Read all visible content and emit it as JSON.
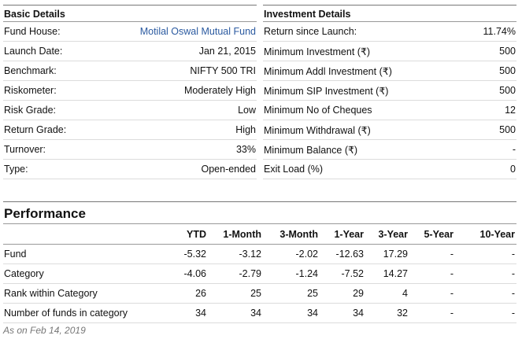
{
  "basic": {
    "title": "Basic Details",
    "rows": [
      {
        "label": "Fund House:",
        "value": "Motilal Oswal Mutual Fund"
      },
      {
        "label": "Launch Date:",
        "value": "Jan 21, 2015"
      },
      {
        "label": "Benchmark:",
        "value": "NIFTY 500 TRI"
      },
      {
        "label": "Riskometer:",
        "value": "Moderately High"
      },
      {
        "label": "Risk Grade:",
        "value": "Low"
      },
      {
        "label": "Return Grade:",
        "value": "High"
      },
      {
        "label": "Turnover:",
        "value": "33%"
      },
      {
        "label": "Type:",
        "value": "Open-ended"
      }
    ]
  },
  "investment": {
    "title": "Investment Details",
    "rows": [
      {
        "label": "Return since Launch:",
        "value": "11.74%"
      },
      {
        "label": "Minimum Investment (₹)",
        "value": "500"
      },
      {
        "label": "Minimum Addl Investment (₹)",
        "value": "500"
      },
      {
        "label": "Minimum SIP Investment (₹)",
        "value": "500"
      },
      {
        "label": "Minimum No of Cheques",
        "value": "12"
      },
      {
        "label": "Minimum Withdrawal (₹)",
        "value": "500"
      },
      {
        "label": "Minimum Balance (₹)",
        "value": "-"
      },
      {
        "label": "Exit Load (%)",
        "value": "0"
      }
    ]
  },
  "performance": {
    "title": "Performance",
    "columns": [
      "",
      "YTD",
      "1-Month",
      "3-Month",
      "1-Year",
      "3-Year",
      "5-Year",
      "10-Year"
    ],
    "rows": [
      [
        "Fund",
        "-5.32",
        "-3.12",
        "-2.02",
        "-12.63",
        "17.29",
        "-",
        "-"
      ],
      [
        "Category",
        "-4.06",
        "-2.79",
        "-1.24",
        "-7.52",
        "14.27",
        "-",
        "-"
      ],
      [
        "Rank within Category",
        "26",
        "25",
        "25",
        "29",
        "4",
        "-",
        "-"
      ],
      [
        "Number of funds in category",
        "34",
        "34",
        "34",
        "34",
        "32",
        "-",
        "-"
      ]
    ],
    "as_of": "As on Feb 14, 2019"
  },
  "colors": {
    "link": "#2b5aa0"
  }
}
